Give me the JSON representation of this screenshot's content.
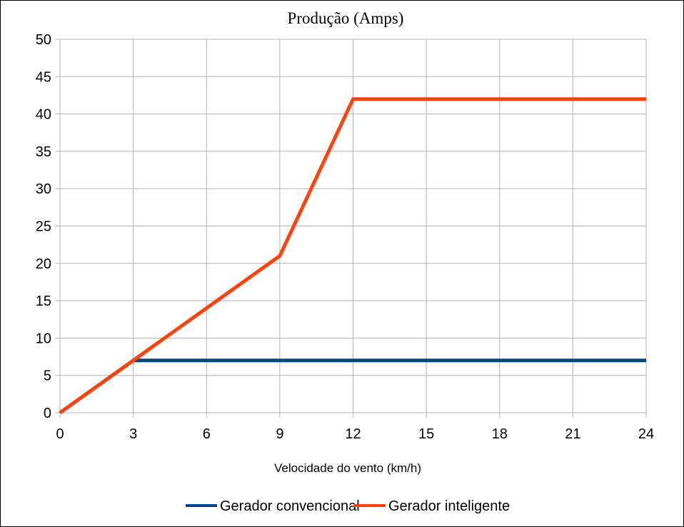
{
  "chart_data": {
    "type": "line",
    "title": "Produção (Amps)",
    "xlabel": "Velocidade do vento (km/h)",
    "ylabel": "",
    "xlim": [
      0,
      24
    ],
    "ylim": [
      0,
      50
    ],
    "xticks": [
      0,
      3,
      6,
      9,
      12,
      15,
      18,
      21,
      24
    ],
    "yticks": [
      0,
      5,
      10,
      15,
      20,
      25,
      30,
      35,
      40,
      45,
      50
    ],
    "grid": true,
    "legend_position": "bottom",
    "series": [
      {
        "name": "Gerador convencional",
        "color": "#004586",
        "points": [
          [
            0,
            0
          ],
          [
            3,
            7
          ],
          [
            24,
            7
          ]
        ]
      },
      {
        "name": "Gerador inteligente",
        "color": "#ff420e",
        "points": [
          [
            0,
            0
          ],
          [
            3,
            7
          ],
          [
            9,
            21
          ],
          [
            12,
            42
          ],
          [
            24,
            42
          ]
        ]
      }
    ]
  }
}
